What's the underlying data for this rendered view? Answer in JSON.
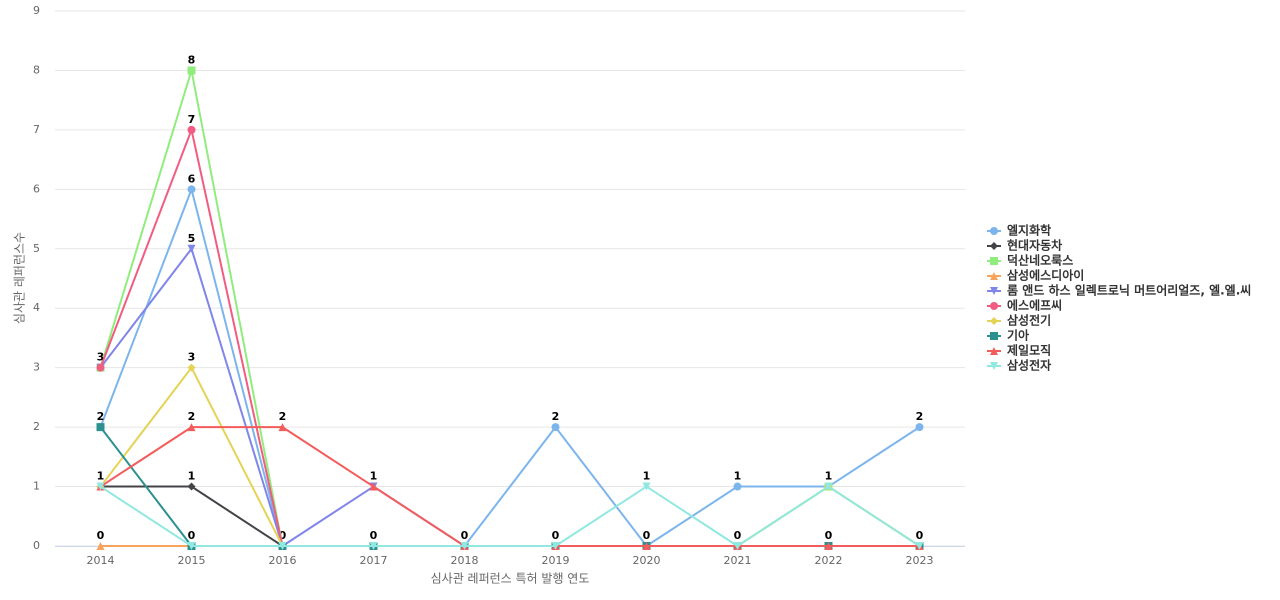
{
  "chart_data": {
    "type": "line",
    "x_label": "심사관 레퍼런스 특허 발행 연도",
    "y_label": "심사관 레퍼런스수",
    "categories": [
      "2014",
      "2015",
      "2016",
      "2017",
      "2018",
      "2019",
      "2020",
      "2021",
      "2022",
      "2023"
    ],
    "ylim": [
      0,
      9
    ],
    "yticks": [
      0,
      1,
      2,
      3,
      4,
      5,
      6,
      7,
      8,
      9
    ],
    "grid": true,
    "legend": "right",
    "series": [
      {
        "name": "엘지화학",
        "color": "#7cb5ec",
        "marker": "circle",
        "values": [
          2,
          6,
          0,
          0,
          0,
          2,
          0,
          1,
          1,
          2
        ]
      },
      {
        "name": "현대자동차",
        "color": "#434348",
        "marker": "diamond",
        "values": [
          1,
          1,
          0,
          0,
          0,
          0,
          0,
          0,
          0,
          0
        ]
      },
      {
        "name": "덕산네오룩스",
        "color": "#90ed7d",
        "marker": "square",
        "values": [
          3,
          8,
          0,
          0,
          0,
          0,
          0,
          0,
          1,
          0
        ]
      },
      {
        "name": "삼성에스디아이",
        "color": "#f7a35c",
        "marker": "triangle",
        "values": [
          0,
          0,
          0,
          0,
          0,
          0,
          0,
          0,
          0,
          0
        ]
      },
      {
        "name": "롬 앤드 하스 일렉트로닉 머트어리얼즈, 엘.엘.씨",
        "color": "#8085e9",
        "marker": "triangle-down",
        "values": [
          3,
          5,
          0,
          1,
          0,
          0,
          0,
          0,
          0,
          0
        ]
      },
      {
        "name": "에스에프씨",
        "color": "#f15c80",
        "marker": "circle",
        "values": [
          3,
          7,
          0,
          0,
          0,
          0,
          0,
          0,
          0,
          0
        ]
      },
      {
        "name": "삼성전기",
        "color": "#e4d354",
        "marker": "diamond",
        "values": [
          1,
          3,
          0,
          0,
          0,
          0,
          0,
          0,
          1,
          0
        ]
      },
      {
        "name": "기아",
        "color": "#2b908f",
        "marker": "square",
        "values": [
          2,
          0,
          0,
          0,
          0,
          0,
          0,
          0,
          0,
          0
        ]
      },
      {
        "name": "제일모직",
        "color": "#f45b5b",
        "marker": "triangle",
        "values": [
          1,
          2,
          2,
          1,
          0,
          0,
          0,
          0,
          0,
          0
        ]
      },
      {
        "name": "삼성전자",
        "color": "#91e8e1",
        "marker": "triangle-down",
        "values": [
          1,
          0,
          0,
          0,
          0,
          0,
          1,
          0,
          1,
          0
        ]
      }
    ]
  }
}
